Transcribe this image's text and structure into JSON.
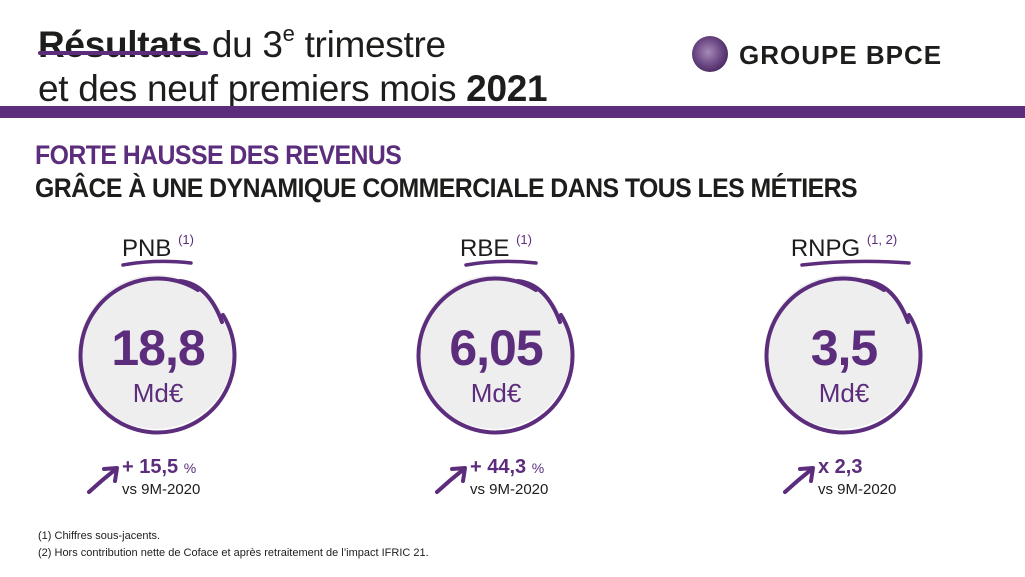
{
  "title": {
    "line1_bold": "Résultats",
    "line1_rest": " du 3",
    "line1_sup": "e",
    "line1_end": " trimestre",
    "line2_rest": "et des neuf premiers mois ",
    "line2_bold": "2021"
  },
  "logo": {
    "text": "GROUPE BPCE"
  },
  "subtitle": {
    "line1": "FORTE HAUSSE DES REVENUS",
    "line2": "GRÂCE À UNE DYNAMIQUE COMMERCIALE DANS TOUS LES MÉTIERS"
  },
  "kpis": [
    {
      "label": "PNB",
      "note": "(1)",
      "value": "18,8",
      "unit": "Md€",
      "growth": "+ 15,5",
      "growth_unit": "%",
      "comparison": "vs 9M-2020"
    },
    {
      "label": "RBE",
      "note": "(1)",
      "value": "6,05",
      "unit": "Md€",
      "growth": "+ 44,3",
      "growth_unit": "%",
      "comparison": "vs 9M-2020"
    },
    {
      "label": "RNPG",
      "note": "(1, 2)",
      "value": "3,5",
      "unit": "Md€",
      "growth": "x 2,3",
      "growth_unit": "",
      "comparison": "vs 9M-2020"
    }
  ],
  "footnotes": [
    "(1) Chiffres sous-jacents.",
    "(2) Hors contribution nette de Coface et après retraitement de l’impact IFRIC 21."
  ],
  "colors": {
    "accent": "#5b2d7c",
    "text": "#1d1d1b",
    "circle_fill": "#efeeee"
  }
}
